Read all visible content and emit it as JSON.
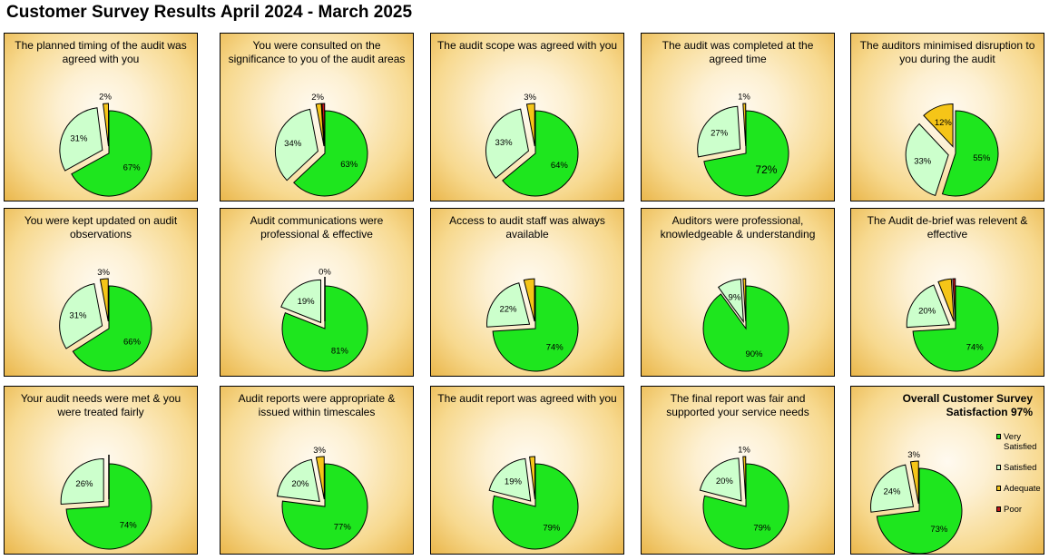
{
  "title": "Customer Survey Results April 2024 - March 2025",
  "colors": {
    "very_satisfied": "#1ee61e",
    "satisfied": "#ccffcc",
    "adequate": "#f5c518",
    "poor": "#c0161a"
  },
  "legend": [
    {
      "key": "very_satisfied",
      "label": "Very Satisfied"
    },
    {
      "key": "satisfied",
      "label": "Satisfied"
    },
    {
      "key": "adequate",
      "label": "Adequate"
    },
    {
      "key": "poor",
      "label": "Poor"
    }
  ],
  "chart_data": [
    {
      "type": "pie",
      "title": "The planned timing of the audit was agreed with you",
      "slices": [
        67,
        31,
        2,
        0
      ],
      "labels": [
        "67%",
        "31%",
        "2%",
        ""
      ]
    },
    {
      "type": "pie",
      "title": "You were consulted on the significance to you of the audit areas",
      "slices": [
        63,
        34,
        2,
        1
      ],
      "labels": [
        "63%",
        "34%",
        "2%",
        ""
      ]
    },
    {
      "type": "pie",
      "title": "The audit scope was agreed with you",
      "slices": [
        64,
        33,
        3,
        0
      ],
      "labels": [
        "64%",
        "33%",
        "3%",
        ""
      ]
    },
    {
      "type": "pie",
      "title": "The audit was completed at the agreed time",
      "slices": [
        72,
        27,
        1,
        0
      ],
      "labels": [
        "72%",
        "27%",
        "1%",
        ""
      ]
    },
    {
      "type": "pie",
      "title": "The auditors minimised disruption to you during the audit",
      "slices": [
        55,
        33,
        12,
        0
      ],
      "labels": [
        "55%",
        "33%",
        "12%",
        ""
      ]
    },
    {
      "type": "pie",
      "title": "You were kept updated on audit observations",
      "slices": [
        66,
        31,
        3,
        0
      ],
      "labels": [
        "66%",
        "31%",
        "3%",
        ""
      ]
    },
    {
      "type": "pie",
      "title": "Audit communications were professional & effective",
      "slices": [
        81,
        19,
        0,
        0
      ],
      "labels": [
        "81%",
        "19%",
        "0%",
        ""
      ]
    },
    {
      "type": "pie",
      "title": "Access to audit staff was always available",
      "slices": [
        74,
        22,
        4,
        0
      ],
      "labels": [
        "74%",
        "22%",
        "",
        ""
      ]
    },
    {
      "type": "pie",
      "title": "Auditors were professional, knowledgeable & understanding",
      "slices": [
        90,
        9,
        1,
        0
      ],
      "labels": [
        "90%",
        "9%",
        "",
        ""
      ]
    },
    {
      "type": "pie",
      "title": "The Audit de-brief was relevent & effective",
      "slices": [
        74,
        20,
        5,
        1
      ],
      "labels": [
        "74%",
        "20%",
        "",
        ""
      ]
    },
    {
      "type": "pie",
      "title": "Your audit needs were met & you were treated fairly",
      "slices": [
        74,
        26,
        0,
        0
      ],
      "labels": [
        "74%",
        "26%",
        "",
        ""
      ]
    },
    {
      "type": "pie",
      "title": "Audit reports were appropriate & issued within timescales",
      "slices": [
        77,
        20,
        3,
        0
      ],
      "labels": [
        "77%",
        "20%",
        "3%",
        ""
      ]
    },
    {
      "type": "pie",
      "title": "The audit report was agreed with you",
      "slices": [
        79,
        19,
        2,
        0
      ],
      "labels": [
        "79%",
        "19%",
        "",
        ""
      ]
    },
    {
      "type": "pie",
      "title": "The final report was fair and supported your service needs",
      "slices": [
        79,
        20,
        1,
        0
      ],
      "labels": [
        "79%",
        "20%",
        "1%",
        ""
      ]
    },
    {
      "type": "pie",
      "title": "Overall Customer Survey Satisfaction 97%",
      "slices": [
        73,
        24,
        3,
        0
      ],
      "labels": [
        "73%",
        "24%",
        "3%",
        ""
      ],
      "legend": true
    }
  ]
}
